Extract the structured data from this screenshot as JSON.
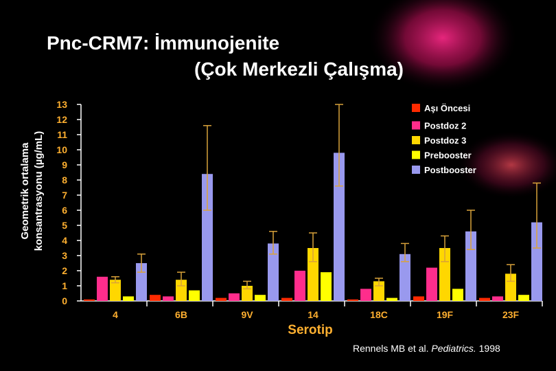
{
  "title_line1": "Pnc-CRM7:  İmmunojenite",
  "title_line2": "(Çok Merkezli Çalışma)",
  "citation": {
    "prefix": "Rennels MB et al. ",
    "journal": "Pediatrics.",
    "year": " 1998"
  },
  "chart_data": {
    "type": "bar",
    "ylabel": "Geometrik ortalama konsantrasyonu (µg/mL)",
    "ylabel_line1": "Geometrik ortalama",
    "ylabel_line2": "konsantrasyonu (µg/mL)",
    "xlabel": "Serotip",
    "ylim": [
      0,
      13
    ],
    "yticks": [
      "0",
      "1",
      "2",
      "3",
      "4",
      "5",
      "6",
      "7",
      "8",
      "9",
      "10",
      "11",
      "12",
      "13"
    ],
    "categories": [
      "4",
      "6B",
      "9V",
      "14",
      "18C",
      "19F",
      "23F"
    ],
    "legend_position": "top-right",
    "grid": false,
    "series": [
      {
        "name": "Aşı Öncesi",
        "color": "#ff2a00",
        "values": [
          0.1,
          0.4,
          0.2,
          0.2,
          0.1,
          0.3,
          0.2
        ],
        "err": [
          null,
          null,
          null,
          null,
          null,
          null,
          null
        ]
      },
      {
        "name": "Postdoz 2",
        "color": "#ff2d8c",
        "values": [
          1.6,
          0.3,
          0.5,
          2.0,
          0.8,
          2.2,
          0.3
        ],
        "err": [
          null,
          null,
          null,
          null,
          null,
          null,
          null
        ]
      },
      {
        "name": "Postdoz 3",
        "color": "#ffd700",
        "values": [
          1.4,
          1.4,
          1.0,
          3.5,
          1.3,
          3.5,
          1.8
        ],
        "err": [
          [
            1.2,
            1.6
          ],
          [
            1.0,
            1.9
          ],
          [
            0.8,
            1.3
          ],
          [
            2.6,
            4.5
          ],
          [
            1.0,
            1.5
          ],
          [
            2.6,
            4.3
          ],
          [
            1.3,
            2.4
          ]
        ]
      },
      {
        "name": "Prebooster",
        "color": "#ffff00",
        "values": [
          0.3,
          0.7,
          0.4,
          1.9,
          0.2,
          0.8,
          0.4
        ],
        "err": [
          null,
          null,
          null,
          null,
          null,
          null,
          null
        ]
      },
      {
        "name": "Postbooster",
        "color": "#9999ee",
        "values": [
          2.5,
          8.4,
          3.8,
          9.8,
          3.1,
          4.6,
          5.2
        ],
        "err": [
          [
            1.9,
            3.1
          ],
          [
            6.0,
            11.6
          ],
          [
            3.1,
            4.6
          ],
          [
            7.6,
            13.0
          ],
          [
            2.6,
            3.8
          ],
          [
            3.4,
            6.0
          ],
          [
            3.5,
            7.8
          ]
        ]
      }
    ]
  }
}
